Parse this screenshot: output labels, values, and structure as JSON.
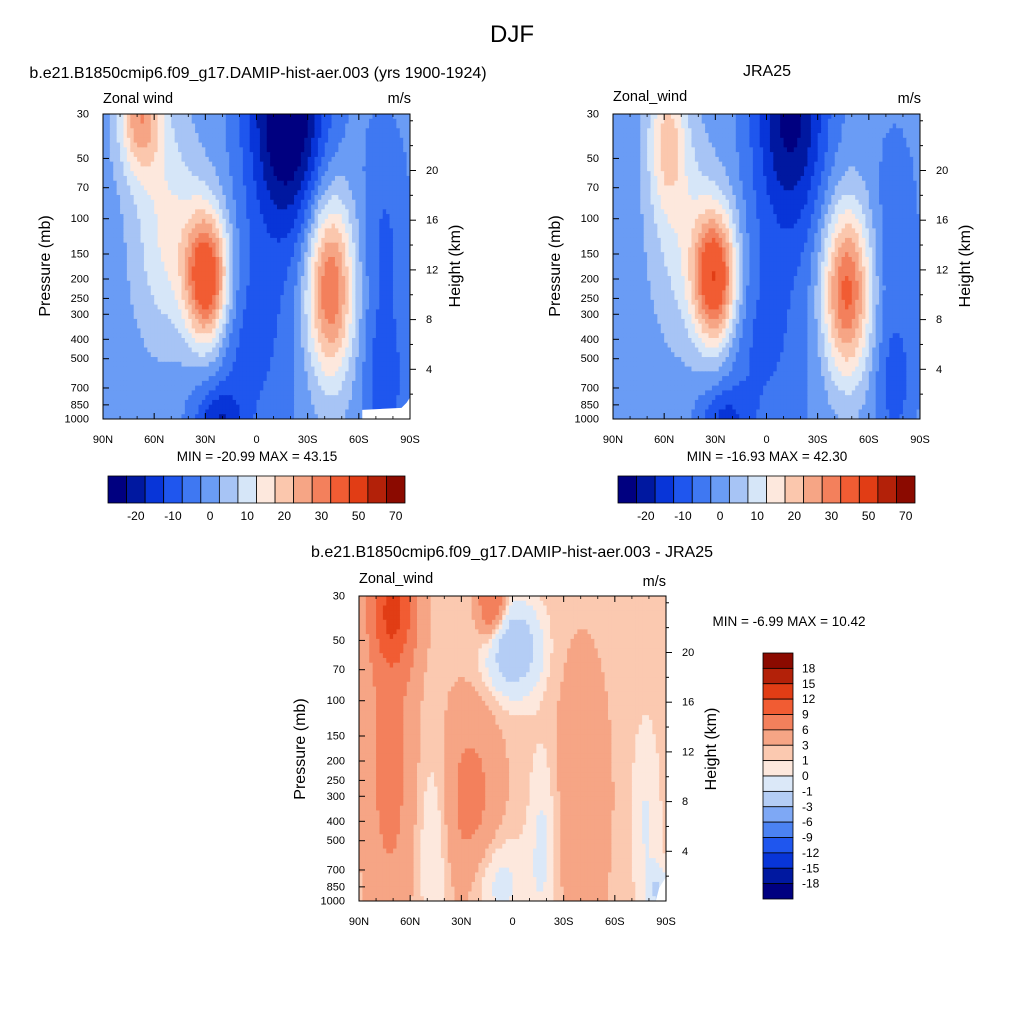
{
  "page": {
    "title": "DJF"
  },
  "colors": {
    "model_obs": [
      "#000080",
      "#0018a0",
      "#0835d8",
      "#1f56ee",
      "#3f78f2",
      "#6a9cf5",
      "#a7c4f5",
      "#d6e6f8",
      "#fde8dd",
      "#fbc7ad",
      "#f6a585",
      "#f3805c",
      "#f15c33",
      "#e13d15",
      "#b32109",
      "#8b0a00"
    ],
    "diff": [
      "#000080",
      "#0018a0",
      "#0835d8",
      "#1f56ee",
      "#4b82f2",
      "#7ea8f5",
      "#b4cdf5",
      "#dbe8f8",
      "#fde8dd",
      "#fbc9b0",
      "#f6a585",
      "#f3805c",
      "#f15c33",
      "#e13d15",
      "#b32109",
      "#8b0a00"
    ],
    "missing": "#ffffff"
  },
  "chart_data": [
    {
      "type": "heatmap",
      "id": "model",
      "title": "b.e21.B1850cmip6.f09_g17.DAMIP-hist-aer.003 (yrs 1900-1924)",
      "left_string": "Zonal wind",
      "right_string": "m/s",
      "xlabel": "",
      "ylabel": "Pressure (mb)",
      "y2label": "Height (km)",
      "x_range": [
        90,
        -90
      ],
      "y_range": [
        1000,
        30
      ],
      "x_ticks": [
        90,
        60,
        30,
        0,
        -30,
        -60,
        -90
      ],
      "x_tick_labels": [
        "90N",
        "60N",
        "30N",
        "0",
        "30S",
        "60S",
        "90S"
      ],
      "y_ticks": [
        30,
        50,
        70,
        100,
        150,
        200,
        250,
        300,
        400,
        500,
        700,
        850,
        1000
      ],
      "y_tick_labels": [
        "30",
        "50",
        "70",
        "100",
        "150",
        "200",
        "250",
        "300",
        "400",
        "500",
        "700",
        "850",
        "1000"
      ],
      "y2_ticks": [
        4,
        8,
        12,
        16,
        20
      ],
      "y2_tick_labels": [
        "4",
        "8",
        "12",
        "16",
        "20"
      ],
      "stats": "MIN = -20.99  MAX =  43.15",
      "min": -20.99,
      "max": 43.15,
      "levels": [
        -25,
        -20,
        -15,
        -10,
        -5,
        0,
        5,
        10,
        15,
        20,
        25,
        30,
        40,
        50,
        60,
        70
      ],
      "colorbar_labels": [
        "-20",
        "-10",
        "0",
        "10",
        "20",
        "30",
        "50",
        "70"
      ],
      "colorbar_label_edges": [
        2,
        4,
        6,
        8,
        10,
        12,
        14,
        16
      ],
      "colorbar_orientation": "horizontal",
      "features": [
        {
          "lat": 29,
          "p": 200,
          "v": 43,
          "slat": 9,
          "sp": 0.55
        },
        {
          "lat": 68,
          "p": 30,
          "v": 26,
          "slat": 9,
          "sp": 0.5
        },
        {
          "lat": 52,
          "p": 120,
          "v": 14,
          "slat": 14,
          "sp": 0.9
        },
        {
          "lat": -43,
          "p": 220,
          "v": 34,
          "slat": 10,
          "sp": 0.75
        },
        {
          "lat": -18,
          "p": 30,
          "v": -30,
          "slat": 16,
          "sp": 1.0
        },
        {
          "lat": 8,
          "p": 420,
          "v": -9,
          "slat": 22,
          "sp": 0.9
        },
        {
          "lat": 22,
          "p": 1000,
          "v": -13,
          "slat": 10,
          "sp": 0.25
        },
        {
          "lat": -75,
          "p": 700,
          "v": -9,
          "slat": 8,
          "sp": 0.5
        },
        {
          "lat": -75,
          "p": 150,
          "v": -8,
          "slat": 10,
          "sp": 1.0
        }
      ],
      "base": -3
    },
    {
      "type": "heatmap",
      "id": "obs",
      "title": "JRA25",
      "left_string": "Zonal_wind",
      "right_string": "m/s",
      "xlabel": "",
      "ylabel": "Pressure (mb)",
      "y2label": "Height (km)",
      "x_range": [
        90,
        -90
      ],
      "y_range": [
        1000,
        30
      ],
      "x_ticks": [
        90,
        60,
        30,
        0,
        -30,
        -60,
        -90
      ],
      "x_tick_labels": [
        "90N",
        "60N",
        "30N",
        "0",
        "30S",
        "60S",
        "90S"
      ],
      "y_ticks": [
        30,
        50,
        70,
        100,
        150,
        200,
        250,
        300,
        400,
        500,
        700,
        850,
        1000
      ],
      "y_tick_labels": [
        "30",
        "50",
        "70",
        "100",
        "150",
        "200",
        "250",
        "300",
        "400",
        "500",
        "700",
        "850",
        "1000"
      ],
      "y2_ticks": [
        4,
        8,
        12,
        16,
        20
      ],
      "y2_tick_labels": [
        "4",
        "8",
        "12",
        "16",
        "20"
      ],
      "stats": "MIN = -16.93  MAX =  42.30",
      "min": -16.93,
      "max": 42.3,
      "levels": [
        -25,
        -20,
        -15,
        -10,
        -5,
        0,
        5,
        10,
        15,
        20,
        25,
        30,
        40,
        50,
        60,
        70
      ],
      "colorbar_labels": [
        "-20",
        "-10",
        "0",
        "10",
        "20",
        "30",
        "50",
        "70"
      ],
      "colorbar_label_edges": [
        2,
        4,
        6,
        8,
        10,
        12,
        14,
        16
      ],
      "colorbar_orientation": "horizontal",
      "features": [
        {
          "lat": 30,
          "p": 200,
          "v": 42,
          "slat": 9,
          "sp": 0.55
        },
        {
          "lat": 58,
          "p": 40,
          "v": 18,
          "slat": 8,
          "sp": 0.6
        },
        {
          "lat": 48,
          "p": 130,
          "v": 10,
          "slat": 14,
          "sp": 0.9
        },
        {
          "lat": -47,
          "p": 230,
          "v": 35,
          "slat": 10,
          "sp": 0.7
        },
        {
          "lat": -14,
          "p": 30,
          "v": -24,
          "slat": 15,
          "sp": 1.0
        },
        {
          "lat": 5,
          "p": 420,
          "v": -8,
          "slat": 22,
          "sp": 0.9
        },
        {
          "lat": 25,
          "p": 1000,
          "v": -11,
          "slat": 10,
          "sp": 0.25
        },
        {
          "lat": -75,
          "p": 700,
          "v": -8,
          "slat": 8,
          "sp": 0.5
        },
        {
          "lat": -75,
          "p": 150,
          "v": -6,
          "slat": 10,
          "sp": 1.0
        }
      ],
      "base": -3
    },
    {
      "type": "heatmap",
      "id": "diff",
      "title": "b.e21.B1850cmip6.f09_g17.DAMIP-hist-aer.003 - JRA25",
      "left_string": "Zonal_wind",
      "right_string": "m/s",
      "xlabel": "",
      "ylabel": "Pressure (mb)",
      "y2label": "Height (km)",
      "x_range": [
        90,
        -90
      ],
      "y_range": [
        1000,
        30
      ],
      "x_ticks": [
        90,
        60,
        30,
        0,
        -30,
        -60,
        -90
      ],
      "x_tick_labels": [
        "90N",
        "60N",
        "30N",
        "0",
        "30S",
        "60S",
        "90S"
      ],
      "y_ticks": [
        30,
        50,
        70,
        100,
        150,
        200,
        250,
        300,
        400,
        500,
        700,
        850,
        1000
      ],
      "y_tick_labels": [
        "30",
        "50",
        "70",
        "100",
        "150",
        "200",
        "250",
        "300",
        "400",
        "500",
        "700",
        "850",
        "1000"
      ],
      "y2_ticks": [
        4,
        8,
        12,
        16,
        20
      ],
      "y2_tick_labels": [
        "4",
        "8",
        "12",
        "16",
        "20"
      ],
      "stats": "MIN =  -6.99  MAX =  10.42",
      "min": -6.99,
      "max": 10.42,
      "levels": [
        -21,
        -18,
        -15,
        -12,
        -9,
        -6,
        -3,
        -1,
        0,
        1,
        3,
        6,
        9,
        12,
        15,
        18
      ],
      "colorbar_labels": [
        "18",
        "15",
        "12",
        "9",
        "6",
        "3",
        "1",
        "0",
        "-1",
        "-3",
        "-6",
        "-9",
        "-12",
        "-15",
        "-18"
      ],
      "colorbar_orientation": "vertical",
      "features": [
        {
          "lat": 70,
          "p": 35,
          "v": 8.5,
          "slat": 9,
          "sp": 0.45
        },
        {
          "lat": 72,
          "p": 200,
          "v": 3.5,
          "slat": 10,
          "sp": 1.3
        },
        {
          "lat": 12,
          "p": 33,
          "v": 6,
          "slat": 6,
          "sp": 0.3
        },
        {
          "lat": 0,
          "p": 55,
          "v": -6.5,
          "slat": 11,
          "sp": 0.35
        },
        {
          "lat": 25,
          "p": 330,
          "v": 3.5,
          "slat": 12,
          "sp": 0.8
        },
        {
          "lat": 46,
          "p": 500,
          "v": -2,
          "slat": 7,
          "sp": 0.8
        },
        {
          "lat": 10,
          "p": 800,
          "v": -2.5,
          "slat": 12,
          "sp": 0.4
        },
        {
          "lat": -18,
          "p": 500,
          "v": -2,
          "slat": 6,
          "sp": 0.8
        },
        {
          "lat": -40,
          "p": 300,
          "v": 1.8,
          "slat": 12,
          "sp": 1.2
        },
        {
          "lat": -78,
          "p": 400,
          "v": -1.6,
          "slat": 6,
          "sp": 0.8
        },
        {
          "lat": -85,
          "p": 900,
          "v": -3.5,
          "slat": 4,
          "sp": 0.2
        }
      ],
      "base": 0.5
    }
  ]
}
